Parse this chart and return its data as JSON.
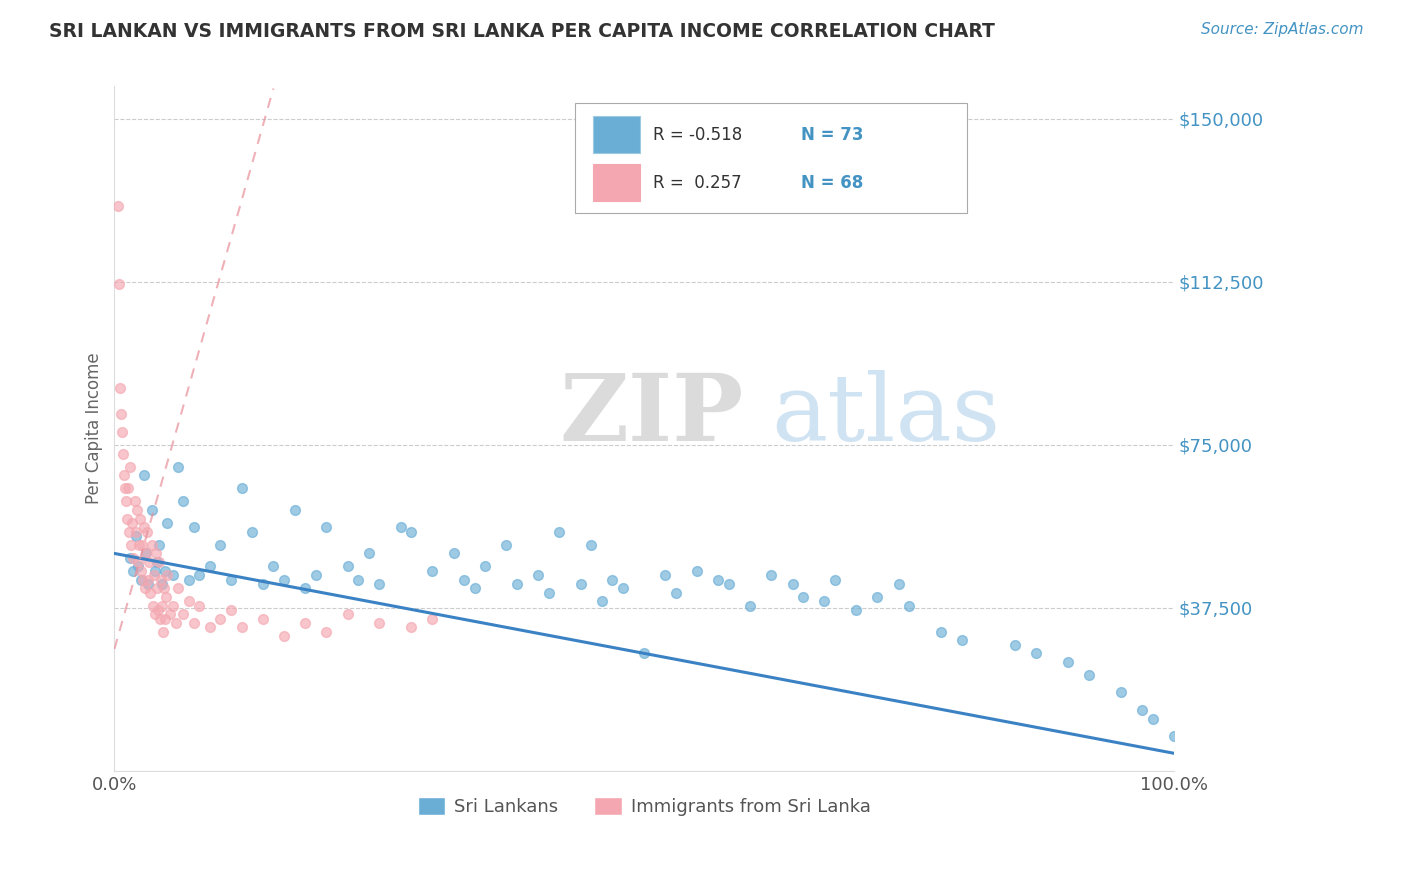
{
  "title": "SRI LANKAN VS IMMIGRANTS FROM SRI LANKA PER CAPITA INCOME CORRELATION CHART",
  "source": "Source: ZipAtlas.com",
  "ylabel": "Per Capita Income",
  "xlim": [
    0.0,
    100.0
  ],
  "ylim": [
    0,
    157500
  ],
  "yticks": [
    0,
    37500,
    75000,
    112500,
    150000
  ],
  "ytick_labels": [
    "",
    "$37,500",
    "$75,000",
    "$112,500",
    "$150,000"
  ],
  "xticks": [
    0.0,
    100.0
  ],
  "xtick_labels": [
    "0.0%",
    "100.0%"
  ],
  "color_blue": "#6aaed6",
  "color_pink": "#f4a7b0",
  "color_trend_blue": "#3b82c4",
  "color_trend_pink": "#e8909a",
  "color_title": "#333333",
  "color_axis_label": "#666666",
  "color_ytick": "#4393c3",
  "color_xtick": "#555555",
  "color_grid": "#cccccc",
  "color_source": "#4393c3",
  "legend_label1": "Sri Lankans",
  "legend_label2": "Immigrants from Sri Lanka",
  "sri_lankan_x": [
    1.5,
    1.8,
    2.0,
    2.2,
    2.5,
    2.8,
    3.0,
    3.2,
    3.5,
    3.8,
    4.0,
    4.2,
    4.5,
    4.8,
    5.0,
    5.5,
    6.0,
    6.5,
    7.0,
    7.5,
    8.0,
    9.0,
    10.0,
    11.0,
    12.0,
    13.0,
    14.0,
    15.0,
    16.0,
    17.0,
    18.0,
    19.0,
    20.0,
    22.0,
    23.0,
    24.0,
    25.0,
    27.0,
    28.0,
    30.0,
    32.0,
    33.0,
    34.0,
    35.0,
    37.0,
    38.0,
    40.0,
    41.0,
    42.0,
    44.0,
    45.0,
    46.0,
    47.0,
    48.0,
    50.0,
    52.0,
    53.0,
    55.0,
    57.0,
    58.0,
    60.0,
    62.0,
    64.0,
    65.0,
    67.0,
    68.0,
    70.0,
    72.0,
    74.0,
    75.0,
    78.0,
    80.0,
    85.0,
    87.0,
    90.0,
    92.0,
    95.0,
    97.0,
    98.0,
    100.0
  ],
  "sri_lankan_y": [
    49000,
    46000,
    54000,
    47000,
    44000,
    68000,
    50000,
    43000,
    60000,
    46000,
    48000,
    52000,
    43000,
    46000,
    57000,
    45000,
    70000,
    62000,
    44000,
    56000,
    45000,
    47000,
    52000,
    44000,
    65000,
    55000,
    43000,
    47000,
    44000,
    60000,
    42000,
    45000,
    56000,
    47000,
    44000,
    50000,
    43000,
    56000,
    55000,
    46000,
    50000,
    44000,
    42000,
    47000,
    52000,
    43000,
    45000,
    41000,
    55000,
    43000,
    52000,
    39000,
    44000,
    42000,
    27000,
    45000,
    41000,
    46000,
    44000,
    43000,
    38000,
    45000,
    43000,
    40000,
    39000,
    44000,
    37000,
    40000,
    43000,
    38000,
    32000,
    30000,
    29000,
    27000,
    25000,
    22000,
    18000,
    14000,
    12000,
    8000
  ],
  "immigrants_x": [
    0.3,
    0.4,
    0.5,
    0.6,
    0.7,
    0.8,
    0.9,
    1.0,
    1.1,
    1.2,
    1.3,
    1.4,
    1.5,
    1.6,
    1.7,
    1.8,
    1.9,
    2.0,
    2.1,
    2.2,
    2.3,
    2.4,
    2.5,
    2.6,
    2.7,
    2.8,
    2.9,
    3.0,
    3.1,
    3.2,
    3.3,
    3.4,
    3.5,
    3.6,
    3.7,
    3.8,
    3.9,
    4.0,
    4.1,
    4.2,
    4.3,
    4.4,
    4.5,
    4.6,
    4.7,
    4.8,
    4.9,
    5.0,
    5.2,
    5.5,
    5.8,
    6.0,
    6.5,
    7.0,
    7.5,
    8.0,
    9.0,
    10.0,
    11.0,
    12.0,
    14.0,
    16.0,
    18.0,
    20.0,
    22.0,
    25.0,
    28.0,
    30.0
  ],
  "immigrants_y": [
    130000,
    112000,
    88000,
    82000,
    78000,
    73000,
    68000,
    65000,
    62000,
    58000,
    65000,
    55000,
    70000,
    52000,
    57000,
    49000,
    62000,
    55000,
    60000,
    48000,
    52000,
    58000,
    46000,
    52000,
    44000,
    56000,
    42000,
    50000,
    55000,
    44000,
    48000,
    41000,
    52000,
    38000,
    45000,
    36000,
    50000,
    42000,
    37000,
    48000,
    35000,
    44000,
    38000,
    32000,
    42000,
    35000,
    40000,
    45000,
    36000,
    38000,
    34000,
    42000,
    36000,
    39000,
    34000,
    38000,
    33000,
    35000,
    37000,
    33000,
    35000,
    31000,
    34000,
    32000,
    36000,
    34000,
    33000,
    35000
  ]
}
